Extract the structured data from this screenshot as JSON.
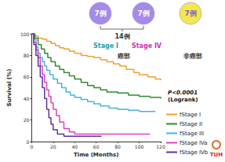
{
  "chart_data": {
    "type": "step",
    "x_label": "Time (Months)",
    "y_label": "Survival (%)",
    "xlim": [
      0,
      120
    ],
    "xticks": [
      0,
      20,
      40,
      60,
      80,
      100,
      120
    ],
    "ylim": [
      0,
      100
    ],
    "yticks": [
      0,
      20,
      40,
      60,
      80,
      100
    ],
    "grid": false,
    "legend": "lower right",
    "series": [
      {
        "name": "fStage I",
        "color": "#f0a030",
        "x": [
          0,
          3,
          6,
          10,
          14,
          18,
          22,
          26,
          30,
          35,
          40,
          46,
          52,
          58,
          64,
          70,
          76,
          82,
          88,
          95,
          100,
          108,
          115,
          120
        ],
        "values": [
          100,
          98,
          96,
          95,
          93,
          91,
          89,
          87,
          86,
          84,
          82,
          80,
          79,
          78,
          76,
          74,
          72,
          70,
          67,
          64,
          62,
          60,
          58,
          57
        ]
      },
      {
        "name": "fStage II",
        "color": "#2e8b2e",
        "x": [
          0,
          3,
          6,
          9,
          12,
          15,
          18,
          22,
          26,
          30,
          35,
          40,
          46,
          52,
          58,
          64,
          70,
          80,
          90,
          100,
          110,
          120
        ],
        "values": [
          100,
          96,
          90,
          86,
          82,
          78,
          74,
          70,
          67,
          64,
          61,
          58,
          55,
          52,
          50,
          48,
          46,
          45,
          43,
          42,
          41,
          40
        ]
      },
      {
        "name": "fStage III",
        "color": "#4ab0e0",
        "x": [
          0,
          2,
          4,
          6,
          8,
          10,
          12,
          14,
          17,
          20,
          24,
          28,
          32,
          36,
          40,
          46,
          52,
          58,
          64,
          72,
          80,
          90,
          100,
          115
        ],
        "values": [
          100,
          95,
          88,
          82,
          78,
          74,
          70,
          66,
          62,
          58,
          54,
          50,
          46,
          43,
          41,
          39,
          37,
          35,
          33,
          31,
          30,
          29,
          28,
          28
        ]
      },
      {
        "name": "fStage IVa",
        "color": "#e040c0",
        "x": [
          0,
          2,
          4,
          6,
          8,
          10,
          12,
          14,
          16,
          18,
          20,
          23,
          26,
          30,
          35,
          40,
          60,
          80,
          110
        ],
        "values": [
          100,
          92,
          85,
          78,
          70,
          62,
          55,
          48,
          42,
          36,
          30,
          24,
          18,
          12,
          9,
          7,
          7,
          7,
          7
        ]
      },
      {
        "name": "fStage IVb",
        "color": "#6030a0",
        "x": [
          0,
          2,
          4,
          6,
          8,
          10,
          12,
          14,
          16,
          18,
          20,
          24,
          30,
          65
        ],
        "values": [
          100,
          90,
          80,
          70,
          60,
          50,
          40,
          30,
          22,
          16,
          11,
          7,
          5,
          5
        ]
      }
    ],
    "annotations": [
      "7例",
      "7例",
      "7例",
      "14例",
      "Stage I",
      "Stage IV",
      "癌部",
      "非癌部",
      "P<0.0001",
      "(Logrank)",
      "TUH"
    ]
  }
}
